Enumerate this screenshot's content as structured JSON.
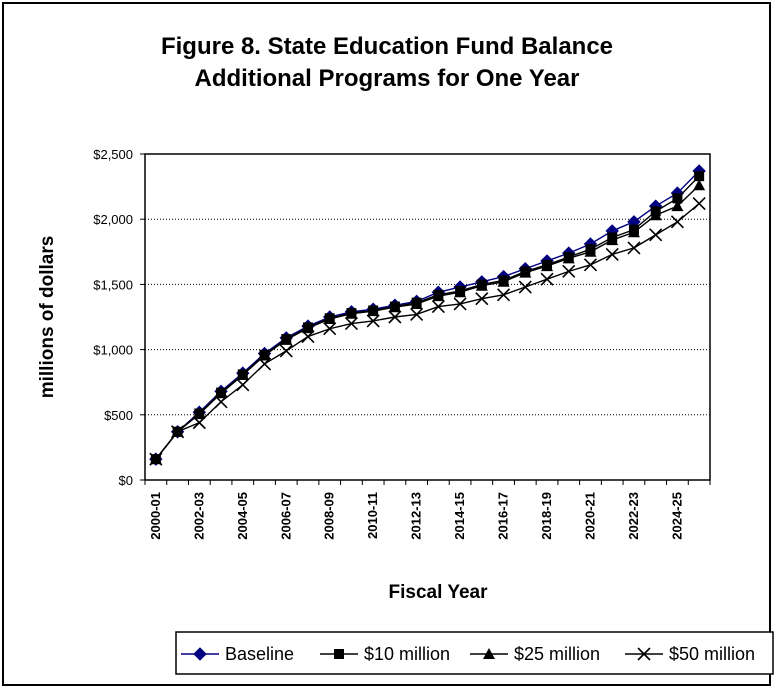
{
  "chart_data": {
    "type": "line",
    "title": "Figure 8.  State Education Fund Balance",
    "subtitle": "Additional Programs for One Year",
    "xlabel": "Fiscal Year",
    "ylabel": "millions of dollars",
    "ylim": [
      0,
      2500
    ],
    "y_ticks": [
      0,
      500,
      1000,
      1500,
      2000,
      2500
    ],
    "y_tick_labels": [
      "$0",
      "$500",
      "$1,000",
      "$1,500",
      "$2,000",
      "$2,500"
    ],
    "x_tick_labels": [
      "2000-01",
      "2002-03",
      "2004-05",
      "2006-07",
      "2008-09",
      "2010-11",
      "2012-13",
      "2014-15",
      "2016-17",
      "2018-19",
      "2020-21",
      "2022-23",
      "2024-25"
    ],
    "grid": "horizontal dotted",
    "legend_position": "bottom",
    "categories": [
      "2000-01",
      "2001-02",
      "2002-03",
      "2003-04",
      "2004-05",
      "2005-06",
      "2006-07",
      "2007-08",
      "2008-09",
      "2009-10",
      "2010-11",
      "2011-12",
      "2012-13",
      "2013-14",
      "2014-15",
      "2015-16",
      "2016-17",
      "2017-18",
      "2018-19",
      "2019-20",
      "2020-21",
      "2021-22",
      "2022-23",
      "2023-24",
      "2024-25",
      "2025-26"
    ],
    "series": [
      {
        "name": "Baseline",
        "marker": "diamond",
        "color": "#000080",
        "values": [
          160,
          370,
          520,
          680,
          820,
          970,
          1090,
          1180,
          1250,
          1290,
          1310,
          1340,
          1370,
          1440,
          1480,
          1520,
          1560,
          1620,
          1680,
          1740,
          1810,
          1910,
          1980,
          2100,
          2200,
          2370
        ]
      },
      {
        "name": "$10 million",
        "marker": "square",
        "color": "#000000",
        "values": [
          160,
          370,
          510,
          670,
          810,
          960,
          1080,
          1170,
          1240,
          1280,
          1300,
          1330,
          1360,
          1420,
          1450,
          1500,
          1530,
          1600,
          1650,
          1710,
          1770,
          1860,
          1920,
          2060,
          2160,
          2330
        ]
      },
      {
        "name": "$25 million",
        "marker": "triangle",
        "color": "#000000",
        "values": [
          160,
          370,
          505,
          665,
          805,
          955,
          1075,
          1165,
          1235,
          1275,
          1295,
          1325,
          1350,
          1410,
          1440,
          1490,
          1520,
          1590,
          1640,
          1700,
          1750,
          1840,
          1900,
          2030,
          2100,
          2260
        ]
      },
      {
        "name": "$50 million",
        "marker": "x",
        "color": "#000000",
        "values": [
          160,
          370,
          440,
          600,
          730,
          890,
          990,
          1100,
          1160,
          1200,
          1220,
          1250,
          1270,
          1330,
          1350,
          1390,
          1420,
          1480,
          1540,
          1600,
          1650,
          1730,
          1780,
          1880,
          1980,
          2120
        ]
      }
    ]
  }
}
